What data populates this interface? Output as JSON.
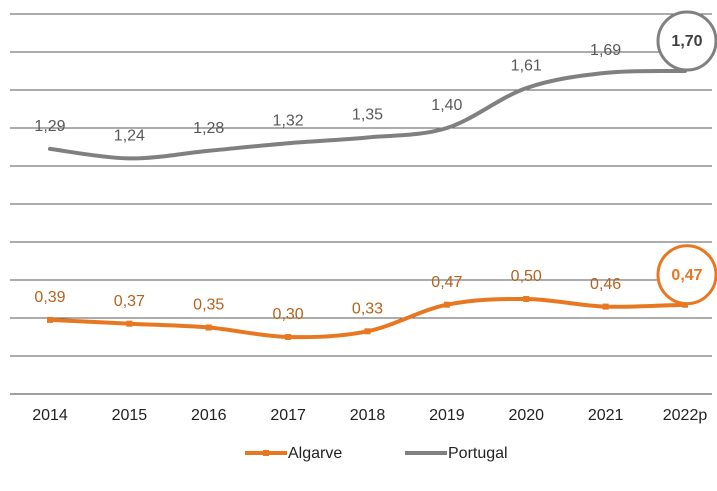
{
  "chart_data": {
    "type": "line",
    "categories": [
      "2014",
      "2015",
      "2016",
      "2017",
      "2018",
      "2019",
      "2020",
      "2021",
      "2022p"
    ],
    "series": [
      {
        "name": "Algarve",
        "color": "#e87722",
        "values": [
          0.39,
          0.37,
          0.35,
          0.3,
          0.33,
          0.47,
          0.5,
          0.46,
          0.47
        ],
        "value_labels": [
          "0,39",
          "0,37",
          "0,35",
          "0,30",
          "0,33",
          "0,47",
          "0,50",
          "0,46",
          "0,47"
        ]
      },
      {
        "name": "Portugal",
        "color": "#808080",
        "values": [
          1.29,
          1.24,
          1.28,
          1.32,
          1.35,
          1.4,
          1.61,
          1.69,
          1.7
        ],
        "value_labels": [
          "1,29",
          "1,24",
          "1,28",
          "1,32",
          "1,35",
          "1,40",
          "1,61",
          "1,69",
          "1,70"
        ]
      }
    ],
    "ylim": [
      0,
      2
    ],
    "yticks": [
      0,
      0.2,
      0.4,
      0.6,
      0.8,
      1,
      1.2,
      1.4,
      1.6,
      1.8,
      2
    ],
    "grid": true
  }
}
